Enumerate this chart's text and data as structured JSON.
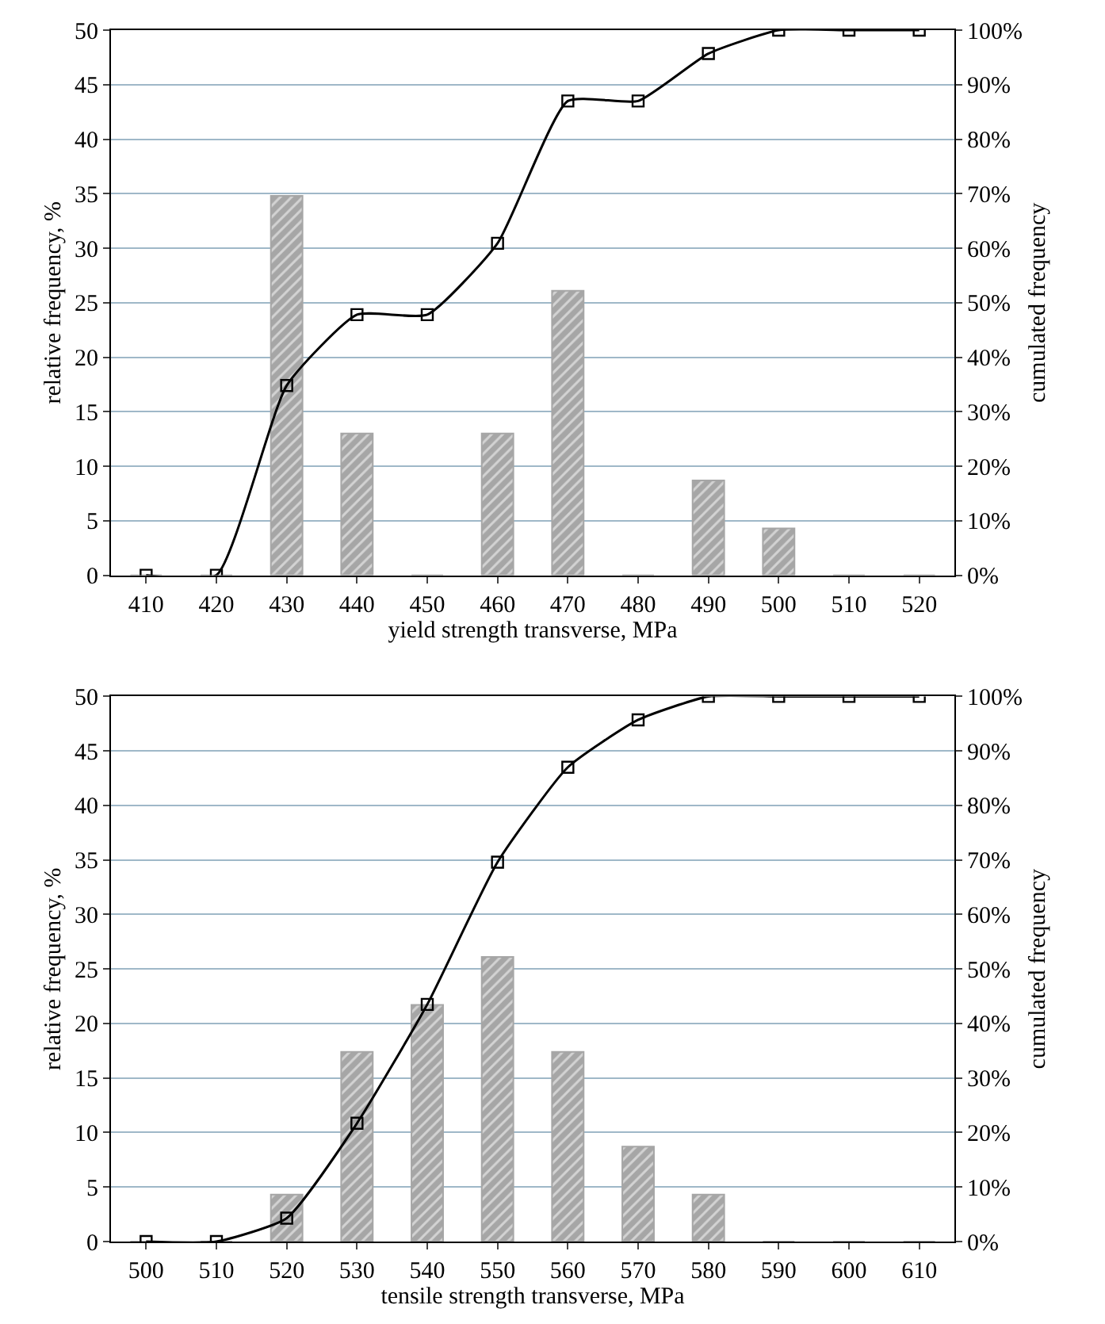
{
  "chart_data": [
    {
      "type": "bar",
      "xlabel": "yield strength transverse, MPa",
      "ylabel": "relative frequency, %",
      "y2label": "cumulated frequency",
      "categories": [
        "410",
        "420",
        "430",
        "440",
        "450",
        "460",
        "470",
        "480",
        "490",
        "500",
        "510",
        "520"
      ],
      "series": [
        {
          "color": "#a6a6a6",
          "values": [
            0,
            0,
            34.8,
            13,
            0,
            13,
            26.1,
            0,
            8.7,
            4.3,
            0,
            0
          ]
        },
        {
          "type": "line",
          "axis": "y2",
          "color": "#000000",
          "marker": "square",
          "line_style": "solid",
          "values": [
            0,
            0,
            34.8,
            47.8,
            47.8,
            60.9,
            87,
            87,
            95.7,
            100,
            100,
            100
          ]
        }
      ],
      "ylim": [
        0,
        50
      ],
      "yticks": [
        0,
        5,
        10,
        15,
        20,
        25,
        30,
        35,
        40,
        45,
        50
      ],
      "y2lim": [
        0,
        100
      ],
      "y2ticks": [
        {
          "value": 0,
          "label": "0%"
        },
        {
          "value": 10,
          "label": "10%"
        },
        {
          "value": 20,
          "label": "20%"
        },
        {
          "value": 30,
          "label": "30%"
        },
        {
          "value": 40,
          "label": "40%"
        },
        {
          "value": 50,
          "label": "50%"
        },
        {
          "value": 60,
          "label": "60%"
        },
        {
          "value": 70,
          "label": "70%"
        },
        {
          "value": 80,
          "label": "80%"
        },
        {
          "value": 90,
          "label": "90%"
        },
        {
          "value": 100,
          "label": "100%"
        }
      ],
      "grid": "y"
    },
    {
      "type": "bar",
      "xlabel": "tensile strength transverse, MPa",
      "ylabel": "relative frequency, %",
      "y2label": "cumulated frequency",
      "categories": [
        "500",
        "510",
        "520",
        "530",
        "540",
        "550",
        "560",
        "570",
        "580",
        "590",
        "600",
        "610"
      ],
      "series": [
        {
          "color": "#a6a6a6",
          "values": [
            0,
            0,
            4.3,
            17.4,
            21.7,
            26.1,
            17.4,
            8.7,
            4.3,
            0,
            0,
            0
          ]
        },
        {
          "type": "line",
          "axis": "y2",
          "color": "#000000",
          "marker": "square",
          "line_style": "solid",
          "values": [
            0,
            0,
            4.3,
            21.7,
            43.5,
            69.6,
            87,
            95.7,
            100,
            100,
            100,
            100
          ]
        }
      ],
      "ylim": [
        0,
        50
      ],
      "yticks": [
        0,
        5,
        10,
        15,
        20,
        25,
        30,
        35,
        40,
        45,
        50
      ],
      "y2lim": [
        0,
        100
      ],
      "y2ticks": [
        {
          "value": 0,
          "label": "0%"
        },
        {
          "value": 10,
          "label": "10%"
        },
        {
          "value": 20,
          "label": "20%"
        },
        {
          "value": 30,
          "label": "30%"
        },
        {
          "value": 40,
          "label": "40%"
        },
        {
          "value": 50,
          "label": "50%"
        },
        {
          "value": 60,
          "label": "60%"
        },
        {
          "value": 70,
          "label": "70%"
        },
        {
          "value": 80,
          "label": "80%"
        },
        {
          "value": 90,
          "label": "90%"
        },
        {
          "value": 100,
          "label": "100%"
        }
      ],
      "grid": "y"
    }
  ]
}
